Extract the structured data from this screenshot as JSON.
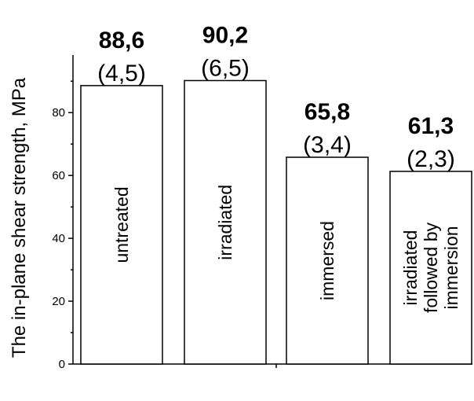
{
  "chart_data": {
    "type": "bar",
    "ylabel": "The in-plane shear strength, MPa",
    "ylim": [
      0,
      95
    ],
    "yticks": [
      0,
      20,
      40,
      60,
      80
    ],
    "categories": [
      [
        "untreated"
      ],
      [
        "irradiated"
      ],
      [
        "immersed"
      ],
      [
        "irradiated",
        "followed by",
        "immersion"
      ]
    ],
    "values": [
      88.6,
      90.2,
      65.8,
      61.3
    ],
    "value_labels": [
      "88,6",
      "90,2",
      "65,8",
      "61,3"
    ],
    "sd_labels": [
      "(4,5)",
      "(6,5)",
      "(3,4)",
      "(2,3)"
    ],
    "bar_fill": "#ffffff",
    "bar_stroke": "#000000"
  }
}
